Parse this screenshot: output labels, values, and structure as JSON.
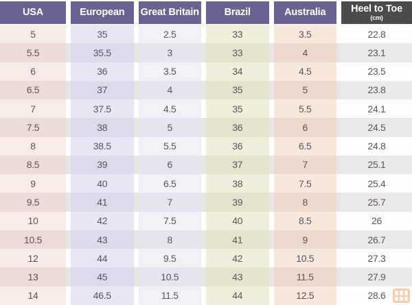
{
  "table": {
    "columns": [
      {
        "label": "USA"
      },
      {
        "label": "European"
      },
      {
        "label": "Great Britain"
      },
      {
        "label": "Brazil"
      },
      {
        "label": "Australia"
      },
      {
        "label": "Heel to Toe",
        "sublabel": "(cm)"
      }
    ],
    "rows": [
      [
        "5",
        "35",
        "2.5",
        "33",
        "3.5",
        "22.8"
      ],
      [
        "5.5",
        "35.5",
        "3",
        "33",
        "4",
        "23.1"
      ],
      [
        "6",
        "36",
        "3.5",
        "34",
        "4.5",
        "23.5"
      ],
      [
        "6.5",
        "37",
        "4",
        "35",
        "5",
        "23.8"
      ],
      [
        "7",
        "37.5",
        "4.5",
        "35",
        "5.5",
        "24.1"
      ],
      [
        "7.5",
        "38",
        "5",
        "36",
        "6",
        "24.5"
      ],
      [
        "8",
        "38.5",
        "5.5",
        "36",
        "6.5",
        "24.8"
      ],
      [
        "8.5",
        "39",
        "6",
        "37",
        "7",
        "25.1"
      ],
      [
        "9",
        "40",
        "6.5",
        "38",
        "7.5",
        "25.4"
      ],
      [
        "9.5",
        "41",
        "7",
        "39",
        "8",
        "25.7"
      ],
      [
        "10",
        "42",
        "7.5",
        "40",
        "8.5",
        "26"
      ],
      [
        "10.5",
        "43",
        "8",
        "41",
        "9",
        "26.7"
      ],
      [
        "12",
        "44",
        "9.5",
        "42",
        "10.5",
        "27.3"
      ],
      [
        "13",
        "45",
        "10.5",
        "43",
        "11.5",
        "27.9"
      ],
      [
        "14",
        "46.5",
        "11.5",
        "44",
        "12.5",
        "28.6"
      ]
    ]
  },
  "palette": {
    "header_bg": "#6a6391",
    "header_dark_bg": "#4c4a4b",
    "header_text": "#ffffff",
    "cell_text": "#59545c",
    "row_even_gutter": "#e9e5e4",
    "column_odd": [
      "#f8ece9",
      "#e7e6f4",
      "#f2f1f7",
      "#f0efdb",
      "#f7e8de",
      "#fdfdfd"
    ],
    "column_even": [
      "#ecdbd7",
      "#dcdaeb",
      "#e6e4ed",
      "#e5e3cb",
      "#eed9cd",
      "#ebe9e9"
    ],
    "watermark": "#e6a25f"
  }
}
